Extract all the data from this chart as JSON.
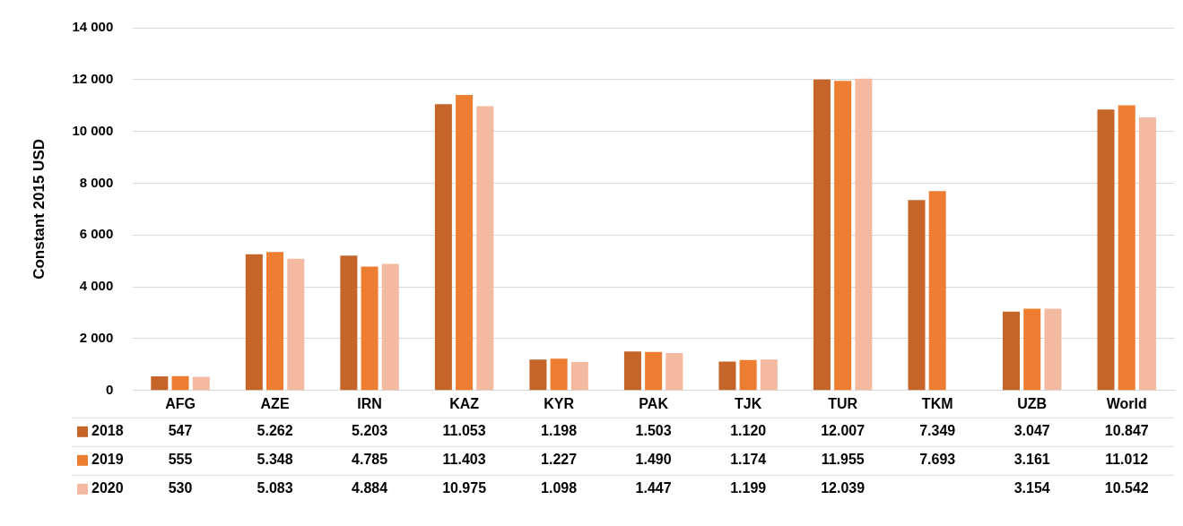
{
  "chart_data": {
    "type": "bar",
    "ylabel": "Constant 2015 USD",
    "categories": [
      "AFG",
      "AZE",
      "IRN",
      "KAZ",
      "KYR",
      "PAK",
      "TJK",
      "TUR",
      "TKM",
      "UZB",
      "World"
    ],
    "series": [
      {
        "name": "2018",
        "color": "#c5652a",
        "values": [
          547,
          5262,
          5203,
          11053,
          1198,
          1503,
          1120,
          12007,
          7349,
          3047,
          10847
        ],
        "value_labels": [
          "547",
          "5.262",
          "5.203",
          "11.053",
          "1.198",
          "1.503",
          "1.120",
          "12.007",
          "7.349",
          "3.047",
          "10.847"
        ]
      },
      {
        "name": "2019",
        "color": "#ed7d31",
        "values": [
          555,
          5348,
          4785,
          11403,
          1227,
          1490,
          1174,
          11955,
          7693,
          3161,
          11012
        ],
        "value_labels": [
          "555",
          "5.348",
          "4.785",
          "11.403",
          "1.227",
          "1.490",
          "1.174",
          "11.955",
          "7.693",
          "3.161",
          "11.012"
        ]
      },
      {
        "name": "2020",
        "color": "#f4b9a1",
        "values": [
          530,
          5083,
          4884,
          10975,
          1098,
          1447,
          1199,
          12039,
          null,
          3154,
          10542
        ],
        "value_labels": [
          "530",
          "5.083",
          "4.884",
          "10.975",
          "1.098",
          "1.447",
          "1.199",
          "12.039",
          null,
          "3.154",
          "10.542"
        ]
      }
    ],
    "ylim": [
      0,
      14000
    ],
    "yticks": [
      {
        "value": 0,
        "label": "0"
      },
      {
        "value": 2000,
        "label": "2 000"
      },
      {
        "value": 4000,
        "label": "4 000"
      },
      {
        "value": 6000,
        "label": "6 000"
      },
      {
        "value": 8000,
        "label": "8 000"
      },
      {
        "value": 10000,
        "label": "10 000"
      },
      {
        "value": 12000,
        "label": "12 000"
      },
      {
        "value": 14000,
        "label": "14 000"
      }
    ],
    "grid": "y",
    "legend": "bottom left"
  }
}
